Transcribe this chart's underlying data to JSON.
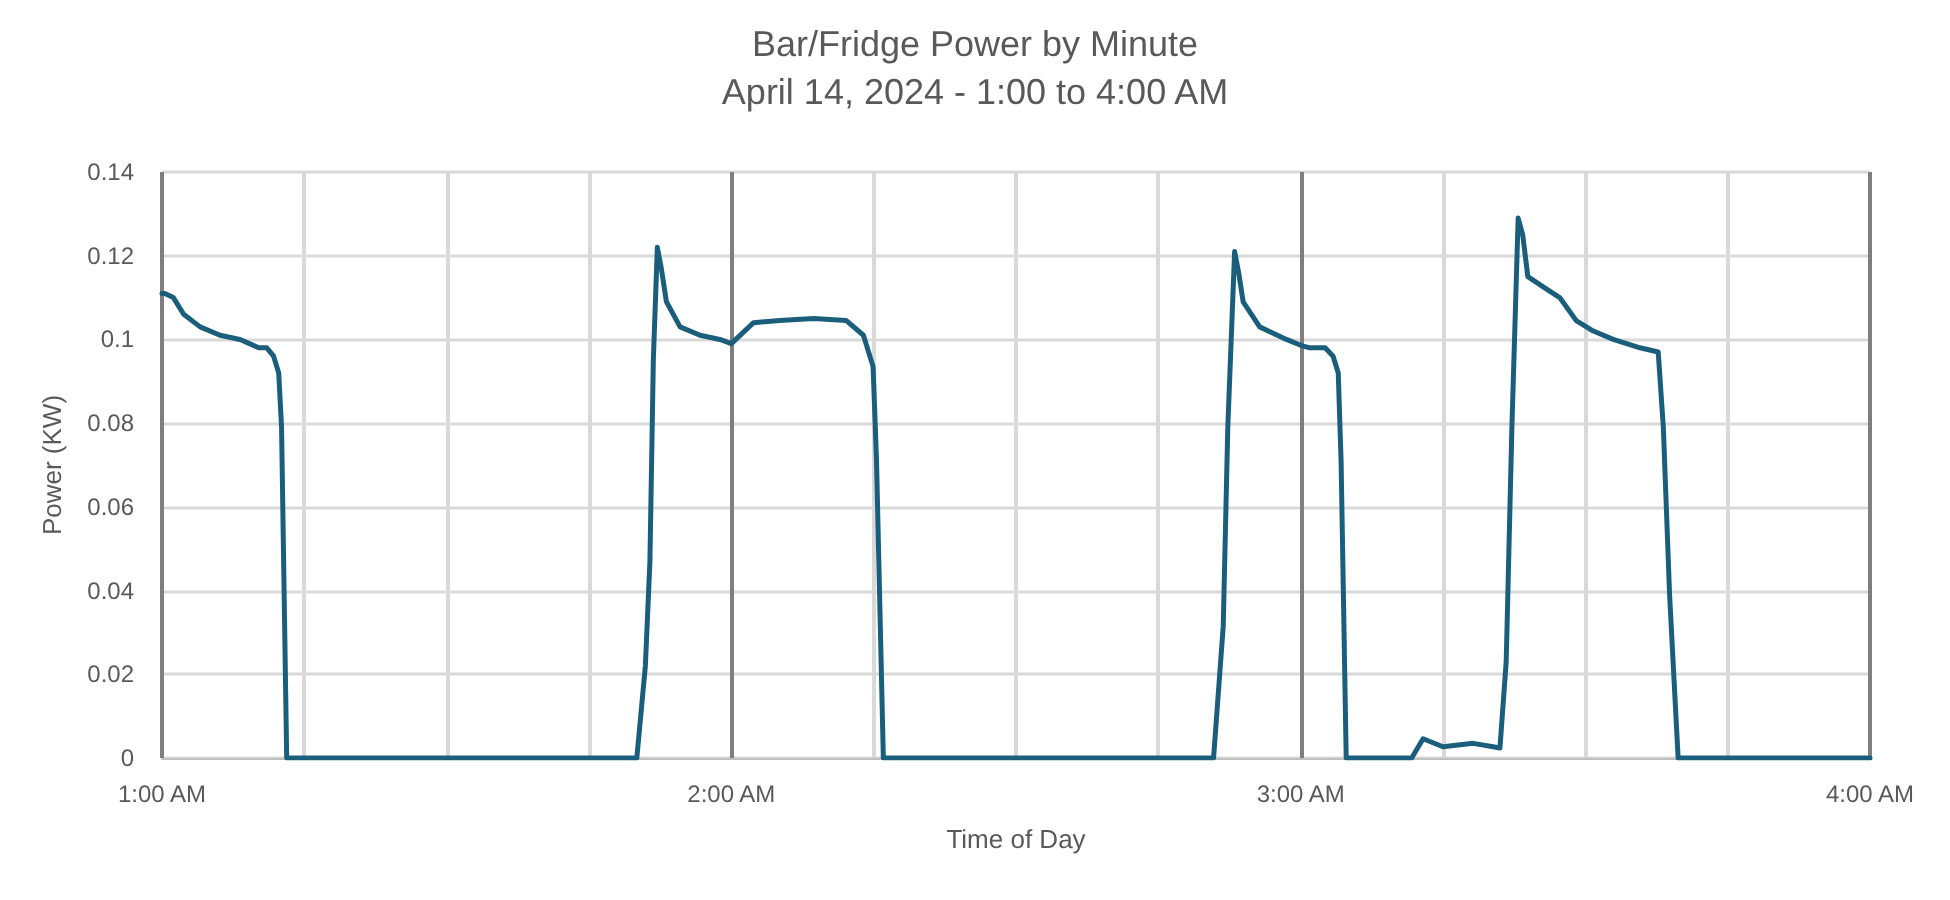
{
  "chart_data": {
    "type": "line",
    "title": "Bar/Fridge Power by Minute",
    "subtitle": "April 14, 2024 - 1:00 to 4:00 AM",
    "xlabel": "Time of Day",
    "ylabel": "Power (KW)",
    "series": [
      {
        "color": "#1b5e7b",
        "x": [
          1.0,
          1.005,
          1.02,
          1.038,
          1.067,
          1.102,
          1.137,
          1.17,
          1.184,
          1.196,
          1.205,
          1.21,
          1.219,
          1.834,
          1.849,
          1.857,
          1.863,
          1.87,
          1.877,
          1.886,
          1.91,
          1.945,
          1.98,
          2.0,
          2.039,
          2.085,
          2.144,
          2.202,
          2.232,
          2.249,
          2.255,
          2.267,
          2.847,
          2.864,
          2.872,
          2.884,
          2.891,
          2.899,
          2.928,
          2.975,
          3.0,
          3.016,
          3.043,
          3.057,
          3.066,
          3.071,
          3.08,
          3.195,
          3.215,
          3.25,
          3.303,
          3.338,
          3.35,
          3.361,
          3.371,
          3.382,
          3.39,
          3.399,
          3.432,
          3.455,
          3.484,
          3.514,
          3.549,
          3.596,
          3.628,
          3.637,
          3.648,
          3.663,
          4.0
        ],
        "values": [
          0.111,
          0.111,
          0.11,
          0.106,
          0.103,
          0.101,
          0.1,
          0.098,
          0.098,
          0.096,
          0.092,
          0.079,
          0,
          0,
          0.022,
          0.047,
          0.095,
          0.122,
          0.117,
          0.109,
          0.103,
          0.101,
          0.1,
          0.099,
          0.104,
          0.1045,
          0.105,
          0.1045,
          0.101,
          0.0935,
          0.071,
          0,
          0,
          0.0315,
          0.079,
          0.121,
          0.116,
          0.109,
          0.103,
          0.1,
          0.0986,
          0.098,
          0.098,
          0.096,
          0.092,
          0.071,
          0,
          0,
          0.0046,
          0.0027,
          0.0035,
          0.0027,
          0.0024,
          0.023,
          0.079,
          0.129,
          0.125,
          0.115,
          0.112,
          0.11,
          0.1045,
          0.102,
          0.1,
          0.098,
          0.097,
          0.079,
          0.039,
          0,
          0
        ]
      }
    ],
    "xlim": [
      1,
      4
    ],
    "xticks": [
      {
        "value": 1,
        "label": "1:00 AM"
      },
      {
        "value": 1.25,
        "label": null
      },
      {
        "value": 1.5,
        "label": null
      },
      {
        "value": 1.75,
        "label": null
      },
      {
        "value": 2,
        "label": "2:00 AM"
      },
      {
        "value": 2.25,
        "label": null
      },
      {
        "value": 2.5,
        "label": null
      },
      {
        "value": 2.75,
        "label": null
      },
      {
        "value": 3,
        "label": "3:00 AM"
      },
      {
        "value": 3.25,
        "label": null
      },
      {
        "value": 3.5,
        "label": null
      },
      {
        "value": 3.75,
        "label": null
      },
      {
        "value": 4,
        "label": "4:00 AM"
      }
    ],
    "ylim": [
      0,
      0.14
    ],
    "yticks": [
      0,
      0.02,
      0.04,
      0.06,
      0.08,
      0.1,
      0.12,
      0.14
    ],
    "grid": true,
    "marker": "none",
    "line_style": "solid"
  }
}
